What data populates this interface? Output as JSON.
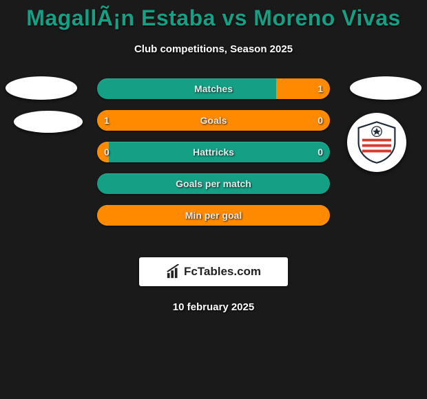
{
  "title": "MagallÃ¡n Estaba vs Moreno Vivas",
  "subtitle": "Club competitions, Season 2025",
  "date": "10 february 2025",
  "watermark": "FcTables.com",
  "colors": {
    "bar_base": "#13a085",
    "bar_fill": "#ff8a00",
    "background": "#1a1a1a",
    "title": "#13a085"
  },
  "bars": [
    {
      "label": "Matches",
      "left": "",
      "right": "1",
      "left_pct": 0,
      "right_pct": 23
    },
    {
      "label": "Goals",
      "left": "1",
      "right": "0",
      "left_pct": 77,
      "right_pct": 23
    },
    {
      "label": "Hattricks",
      "left": "0",
      "right": "0",
      "left_pct": 5,
      "right_pct": 0
    },
    {
      "label": "Goals per match",
      "left": "",
      "right": "",
      "left_pct": 0,
      "right_pct": 0
    },
    {
      "label": "Min per goal",
      "left": "",
      "right": "",
      "left_pct": 100,
      "right_pct": 0
    }
  ]
}
